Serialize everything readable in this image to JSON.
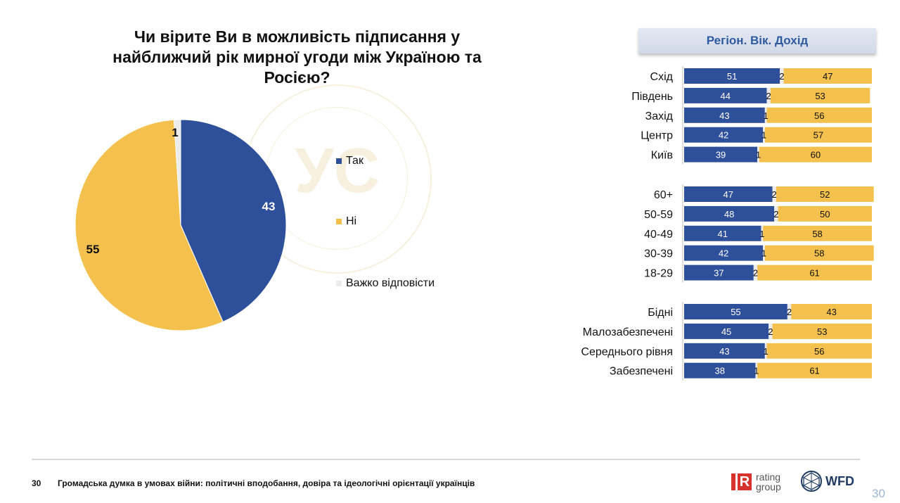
{
  "title": "Чи вірите Ви в можливість підписання у найближчий рік мирної угоди між Україною та Росією?",
  "watermark": "УС",
  "colors": {
    "yes": "#2e4f99",
    "no": "#f5c14e",
    "hard": "#ececec"
  },
  "chart_data": [
    {
      "type": "pie",
      "title": "Чи вірите Ви в можливість підписання у найближчий рік мирної угоди між Україною та Росією?",
      "legend_position": "right",
      "slices": [
        {
          "label": "Так",
          "value": 43
        },
        {
          "label": "Ні",
          "value": 55
        },
        {
          "label": "Важко відповісти",
          "value": 1
        }
      ]
    },
    {
      "type": "bar",
      "stacked": true,
      "orientation": "horizontal",
      "title": "Регіон. Вік. Дохід",
      "groups": [
        {
          "categories": [
            "Схід",
            "Південь",
            "Захід",
            "Центр",
            "Київ"
          ]
        },
        {
          "categories": [
            "60+",
            "50-59",
            "40-49",
            "30-39",
            "18-29"
          ]
        },
        {
          "categories": [
            "Бідні",
            "Малозабезпечені",
            "Середнього рівня",
            "Забезпечені"
          ]
        }
      ],
      "categories": [
        "Схід",
        "Південь",
        "Захід",
        "Центр",
        "Київ",
        "60+",
        "50-59",
        "40-49",
        "30-39",
        "18-29",
        "Бідні",
        "Малозабезпечені",
        "Середнього рівня",
        "Забезпечені"
      ],
      "series": [
        {
          "name": "Так",
          "values": [
            51,
            44,
            43,
            42,
            39,
            47,
            48,
            41,
            42,
            37,
            55,
            45,
            43,
            38
          ]
        },
        {
          "name": "Важко відповісти",
          "values": [
            2,
            2,
            1,
            1,
            1,
            2,
            2,
            1,
            1,
            2,
            2,
            2,
            1,
            1
          ]
        },
        {
          "name": "Ні",
          "values": [
            47,
            53,
            56,
            57,
            60,
            52,
            50,
            58,
            58,
            61,
            43,
            53,
            56,
            61
          ]
        }
      ]
    }
  ],
  "footer": {
    "page": "30",
    "text": "Громадська думка в умовах війни: політичні вподобання, довіра та ідеологічні орієнтації українців",
    "page_corner": "30"
  },
  "logos": {
    "rating_letter": "R",
    "rating_line1": "rating",
    "rating_line2": "group",
    "wfd": "WFD"
  }
}
